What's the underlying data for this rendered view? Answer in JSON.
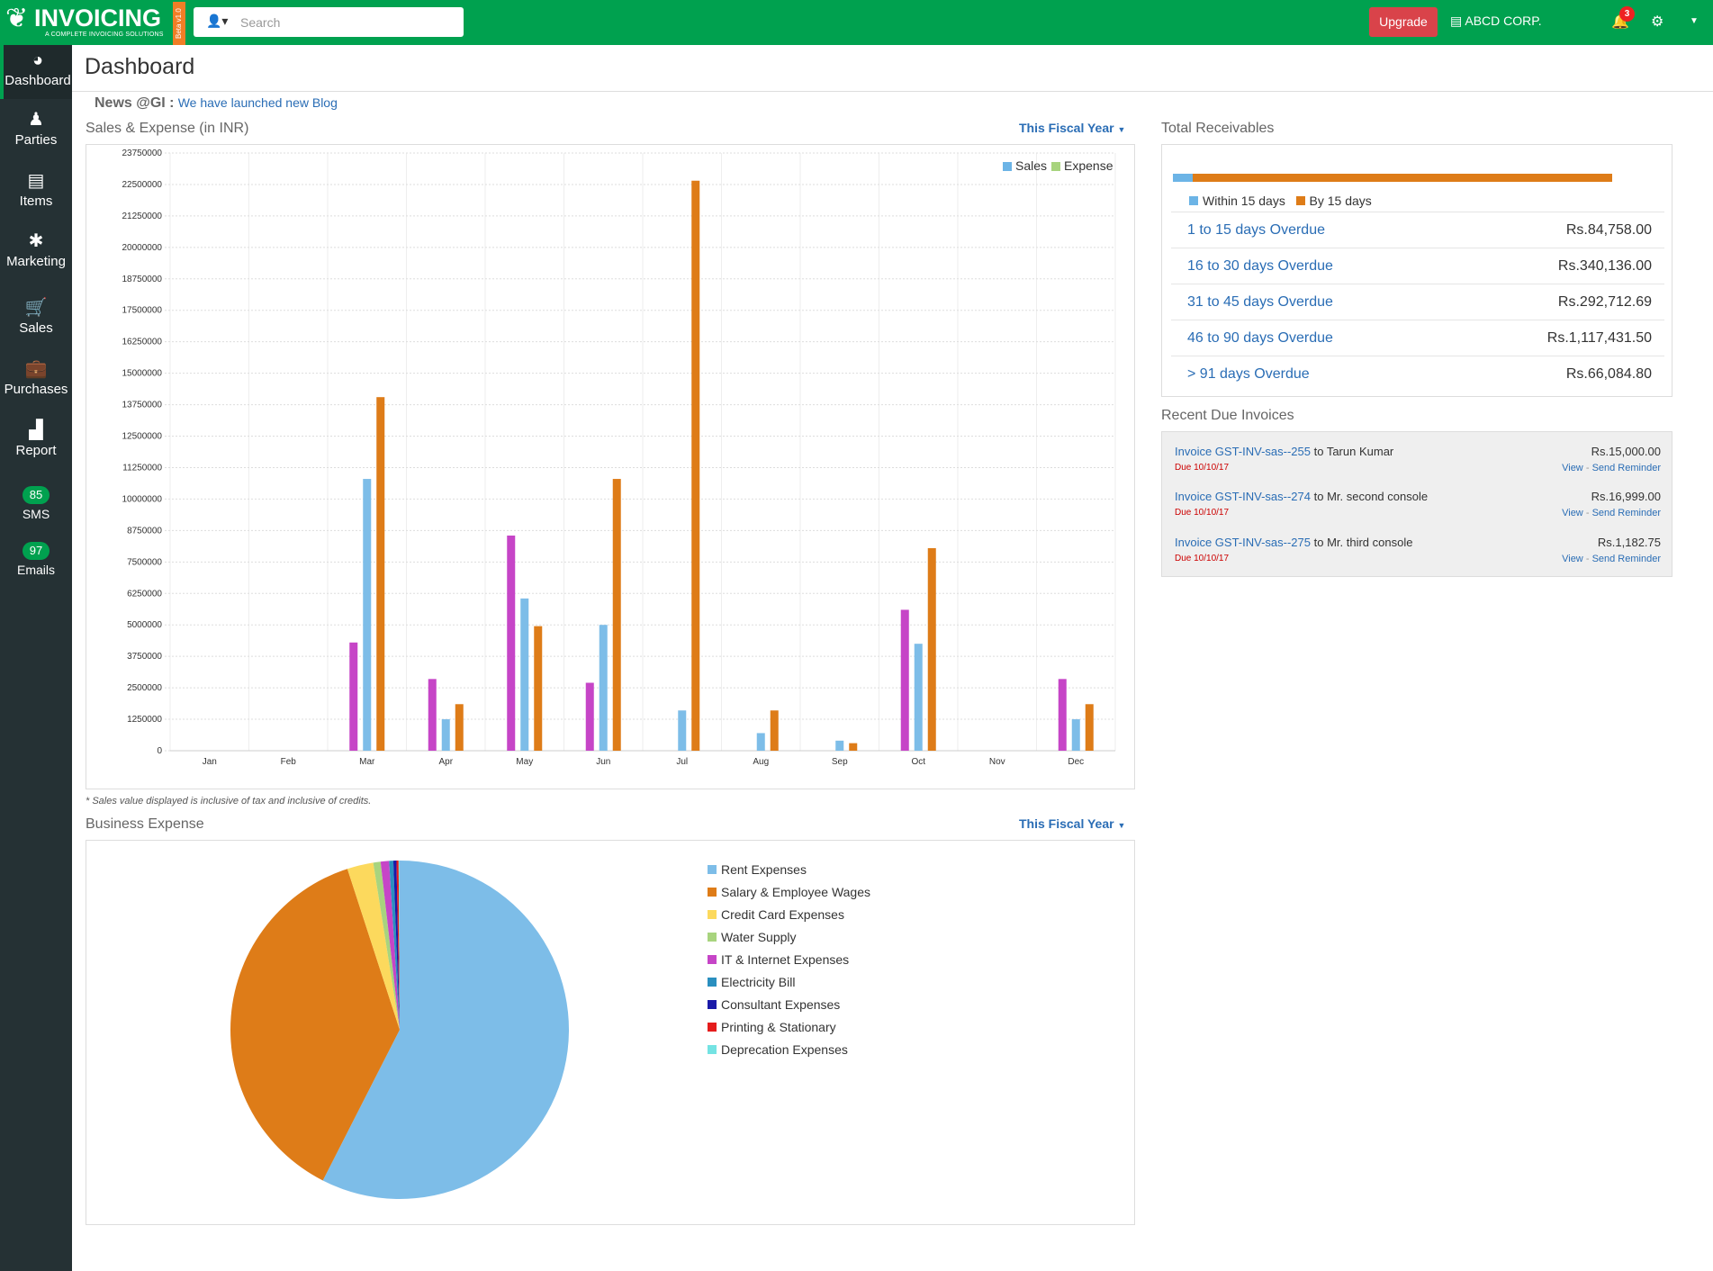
{
  "app": {
    "brand_name": "INVOICING",
    "tagline": "A COMPLETE INVOICING SOLUTIONS",
    "beta_label": "Beta v1.0"
  },
  "topbar": {
    "search_placeholder": "Search",
    "upgrade_label": "Upgrade",
    "company": "ABCD CORP.",
    "notification_count": "3"
  },
  "sidebar": {
    "items": [
      {
        "label": "Dashboard",
        "icon": "dashboard-icon"
      },
      {
        "label": "Parties",
        "icon": "user-icon"
      },
      {
        "label": "Items",
        "icon": "document-icon"
      },
      {
        "label": "Marketing",
        "icon": "share-icon"
      },
      {
        "label": "Sales",
        "icon": "cart-icon"
      },
      {
        "label": "Purchases",
        "icon": "bag-icon"
      },
      {
        "label": "Report",
        "icon": "chart-icon"
      }
    ],
    "sms": {
      "count": "85",
      "label": "SMS"
    },
    "emails": {
      "count": "97",
      "label": "Emails"
    }
  },
  "page": {
    "title": "Dashboard"
  },
  "news": {
    "label": "News @GI :",
    "link_text": "We have launched new Blog"
  },
  "sales_section": {
    "title": "Sales & Expense (in INR)",
    "period": "This Fiscal Year",
    "footnote": "* Sales value displayed is inclusive of tax and inclusive of credits."
  },
  "expense_section": {
    "title": "Business Expense",
    "period": "This Fiscal Year"
  },
  "chart_data": [
    {
      "type": "bar",
      "title": "Sales & Expense (in INR)",
      "categories": [
        "Jan",
        "Feb",
        "Mar",
        "Apr",
        "May",
        "Jun",
        "Jul",
        "Aug",
        "Sep",
        "Oct",
        "Nov",
        "Dec"
      ],
      "ylim": [
        0,
        23750000
      ],
      "yticks": [
        0,
        1250000,
        2500000,
        3750000,
        5000000,
        6250000,
        7500000,
        8750000,
        10000000,
        11250000,
        12500000,
        13750000,
        15000000,
        16250000,
        17500000,
        18750000,
        20000000,
        21250000,
        22500000,
        23750000
      ],
      "grid": true,
      "legend_position": "top-right",
      "legend": [
        {
          "name": "Sales",
          "color": "#6cb4e6"
        },
        {
          "name": "Expense",
          "color": "#a8d47e"
        }
      ],
      "series": [
        {
          "color": "#c645c7",
          "values": [
            0,
            0,
            4300000,
            2850000,
            8550000,
            2700000,
            0,
            0,
            0,
            5600000,
            0,
            2850000
          ]
        },
        {
          "name": "Sales",
          "color": "#7dbde8",
          "values": [
            0,
            0,
            10800000,
            1250000,
            6050000,
            5000000,
            1600000,
            700000,
            400000,
            4250000,
            0,
            1250000
          ]
        },
        {
          "color": "#de7c18",
          "values": [
            0,
            0,
            14050000,
            1850000,
            4950000,
            10800000,
            22650000,
            1600000,
            300000,
            8050000,
            0,
            1850000
          ]
        }
      ]
    },
    {
      "type": "pie",
      "title": "Business Expense",
      "legend_position": "right",
      "slices": [
        {
          "label": "Rent Expenses",
          "value": 57.5,
          "color": "#7dbde8"
        },
        {
          "label": "Salary & Employee Wages",
          "value": 37.5,
          "color": "#de7c18"
        },
        {
          "label": "Credit Card Expenses",
          "value": 2.5,
          "color": "#fcd95d"
        },
        {
          "label": "Water Supply",
          "value": 0.7,
          "color": "#a8d47e"
        },
        {
          "label": "IT & Internet Expenses",
          "value": 0.8,
          "color": "#c645c7"
        },
        {
          "label": "Electricity Bill",
          "value": 0.4,
          "color": "#2a8fbf"
        },
        {
          "label": "Consultant Expenses",
          "value": 0.3,
          "color": "#1a1aa8"
        },
        {
          "label": "Printing & Stationary",
          "value": 0.2,
          "color": "#e51c1c"
        },
        {
          "label": "Deprecation Expenses",
          "value": 0.1,
          "color": "#74e3e3"
        }
      ]
    }
  ],
  "receivables": {
    "title": "Total Receivables",
    "within_fraction": 0.045,
    "legend": [
      {
        "label": "Within 15 days",
        "color": "#6cb4e6"
      },
      {
        "label": "By 15 days",
        "color": "#de7c18"
      }
    ],
    "rows": [
      {
        "label": "1 to 15 days Overdue",
        "value": "Rs.84,758.00"
      },
      {
        "label": "16 to 30 days Overdue",
        "value": "Rs.340,136.00"
      },
      {
        "label": "31 to 45 days Overdue",
        "value": "Rs.292,712.69"
      },
      {
        "label": "46 to 90 days Overdue",
        "value": "Rs.1,117,431.50"
      },
      {
        "label": "> 91 days Overdue",
        "value": "Rs.66,084.80"
      }
    ]
  },
  "due_invoices": {
    "title": "Recent Due Invoices",
    "items": [
      {
        "invoice": "Invoice GST-INV-sas--255",
        "to": " to Tarun Kumar",
        "due": "Due 10/10/17",
        "amount": "Rs.15,000.00",
        "view": "View",
        "remind": "Send Reminder"
      },
      {
        "invoice": "Invoice GST-INV-sas--274",
        "to": " to Mr. second console",
        "due": "Due 10/10/17",
        "amount": "Rs.16,999.00",
        "view": "View",
        "remind": "Send Reminder"
      },
      {
        "invoice": "Invoice GST-INV-sas--275",
        "to": " to Mr. third console",
        "due": "Due 10/10/17",
        "amount": "Rs.1,182.75",
        "view": "View",
        "remind": "Send Reminder"
      }
    ]
  }
}
